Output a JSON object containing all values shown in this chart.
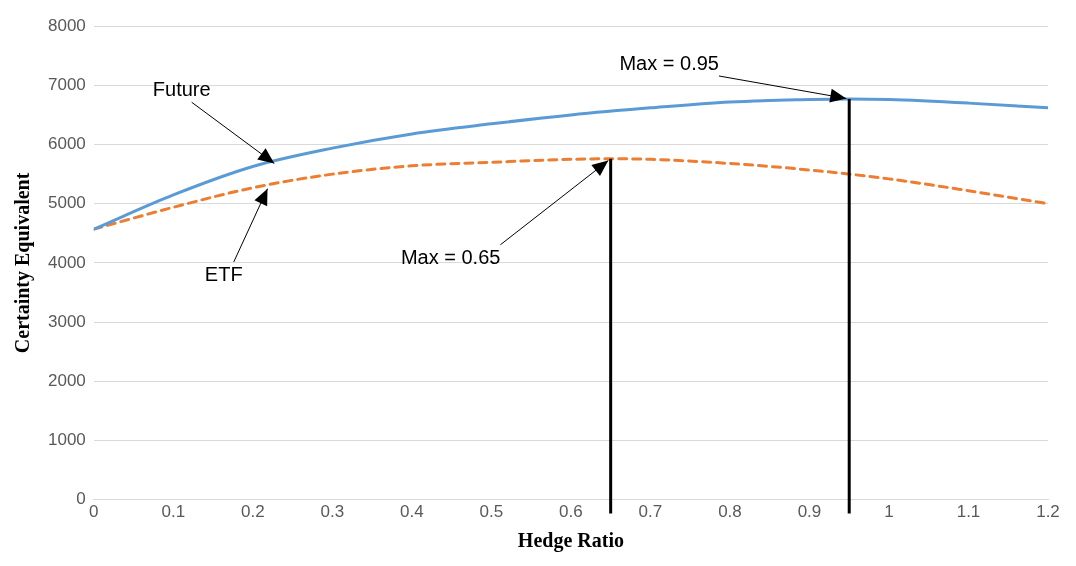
{
  "chart_data": {
    "type": "line",
    "xlabel": "Hedge Ratio",
    "ylabel": "Certainty Equivalent",
    "xlim": [
      0,
      1.2
    ],
    "xticks": [
      0,
      0.1,
      0.2,
      0.3,
      0.4,
      0.5,
      0.6,
      0.7,
      0.8,
      0.9,
      1,
      1.1,
      1.2
    ],
    "ylim": [
      0,
      8000
    ],
    "yticks": [
      0,
      1000,
      2000,
      3000,
      4000,
      5000,
      6000,
      7000,
      8000
    ],
    "grid": "y",
    "legend": false,
    "marker": "none",
    "series": [
      {
        "color": "#5b9bd5",
        "line_style": "solid",
        "x": [
          0,
          0.1,
          0.2,
          0.3,
          0.4,
          0.5,
          0.6,
          0.7,
          0.8,
          0.9,
          0.95,
          1,
          1.1,
          1.2
        ],
        "values": [
          4570,
          5150,
          5630,
          5940,
          6180,
          6350,
          6500,
          6620,
          6720,
          6760,
          6770,
          6760,
          6700,
          6620
        ]
      },
      {
        "color": "#ed7d31",
        "line_style": "dashed",
        "x": [
          0,
          0.1,
          0.2,
          0.3,
          0.4,
          0.5,
          0.6,
          0.65,
          0.7,
          0.8,
          0.9,
          1,
          1.1,
          1.2
        ],
        "values": [
          4570,
          4940,
          5270,
          5500,
          5640,
          5700,
          5750,
          5760,
          5750,
          5680,
          5570,
          5420,
          5220,
          5000
        ]
      }
    ],
    "ref_lines": [
      {
        "axis": "x",
        "value": 0.95,
        "color": "#000000"
      },
      {
        "axis": "x",
        "value": 0.65,
        "color": "#000000"
      }
    ],
    "annotations": [
      {
        "text": "Future",
        "x": 0.23,
        "y": 5650
      },
      {
        "text": "ETF",
        "x": 0.22,
        "y": 5300
      },
      {
        "text": "Max = 0.95",
        "x": 0.95,
        "y": 6770
      },
      {
        "text": "Max = 0.65",
        "x": 0.65,
        "y": 5760
      }
    ]
  }
}
